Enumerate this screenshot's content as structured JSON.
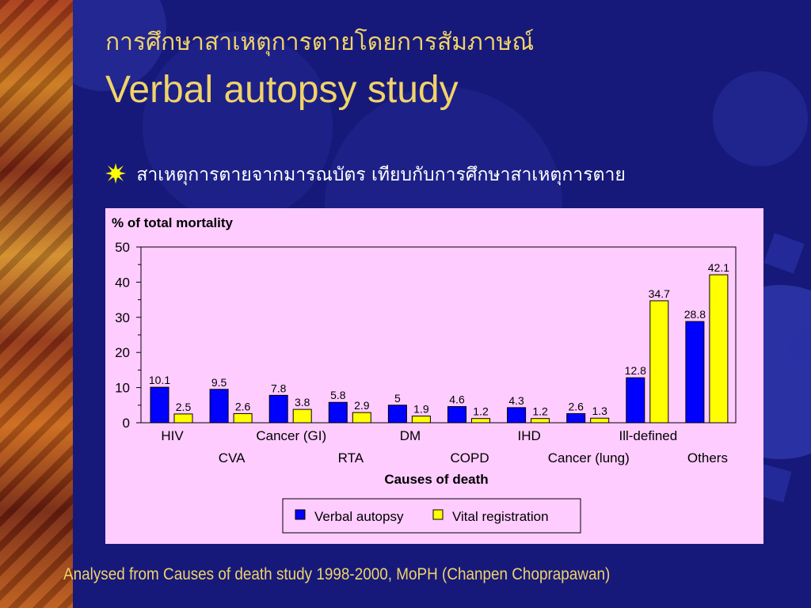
{
  "slide": {
    "title_thai": "การศึกษาสาเหตุการตายโดยการสัมภาษณ์",
    "title_english": "Verbal autopsy study",
    "bullet_text": "สาเหตุการตายจากมารณบัตร เทียบกับการศึกษาสาเหตุการตาย",
    "source_note": "Analysed from Causes of death study 1998-2000, MoPH (Chanpen Choprapawan)",
    "bullet_icon": "sunburst-bullet-icon"
  },
  "colors": {
    "background": "#17197a",
    "title": "#f0d36a",
    "chart_background": "#ffccff",
    "verbal_autopsy": "#0000ff",
    "vital_registration": "#ffff00"
  },
  "chart_data": {
    "type": "bar",
    "title": "% of total mortality",
    "xlabel": "Causes of death",
    "ylabel": "",
    "ylim": [
      0,
      50
    ],
    "yticks": [
      0,
      10,
      20,
      30,
      40,
      50
    ],
    "categories": [
      "HIV",
      "CVA",
      "Cancer (GI)",
      "RTA",
      "DM",
      "COPD",
      "IHD",
      "Cancer (lung)",
      "Ill-defined",
      "Others"
    ],
    "series": [
      {
        "name": "Verbal autopsy",
        "color": "#0000ff",
        "values": [
          10.1,
          9.5,
          7.8,
          5.8,
          5,
          4.6,
          4.3,
          2.6,
          12.8,
          28.8
        ]
      },
      {
        "name": "Vital registration",
        "color": "#ffff00",
        "values": [
          2.5,
          2.6,
          3.8,
          2.9,
          1.9,
          1.2,
          1.2,
          1.3,
          34.7,
          42.1
        ]
      }
    ],
    "legend_position": "bottom-center",
    "grid": false
  }
}
